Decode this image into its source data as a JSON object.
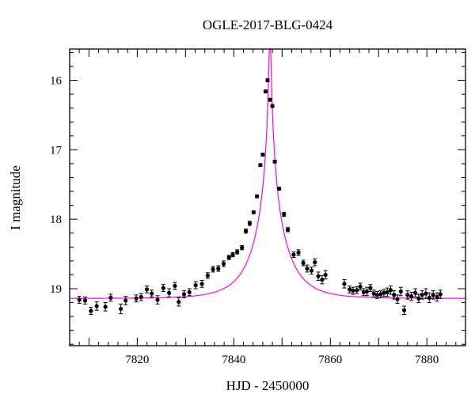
{
  "chart_data": {
    "type": "scatter",
    "title": "OGLE-2017-BLG-0424",
    "xlabel": "HJD - 2450000",
    "ylabel": "I magnitude",
    "xlim": [
      7806,
      7888
    ],
    "ylim": [
      19.82,
      15.55
    ],
    "x_ticks": [
      7820,
      7840,
      7860,
      7880
    ],
    "y_ticks": [
      16,
      17,
      18,
      19
    ],
    "y_inverted": true,
    "grid": false,
    "colors": {
      "points": "#000000",
      "model": "#ff00ff"
    },
    "model": {
      "t0": 7847.5,
      "u0": 0.03,
      "tE": 6.5,
      "baseline": 19.14
    },
    "series": [
      {
        "type": "scatter",
        "x": [
          7808.0,
          7809.2,
          7810.4,
          7811.6,
          7813.4,
          7814.5,
          7816.6,
          7817.6,
          7819.8,
          7820.8,
          7822.0,
          7823.0,
          7824.2,
          7825.4,
          7826.6,
          7827.8,
          7828.6,
          7829.7,
          7830.8,
          7832.1,
          7833.4,
          7834.6,
          7835.7,
          7836.8,
          7837.9,
          7839.0,
          7839.8,
          7840.7,
          7841.7,
          7842.5,
          7843.3,
          7844.1,
          7844.8,
          7845.5,
          7846.0,
          7846.6,
          7847.0,
          7847.5,
          7848.0,
          7848.5,
          7849.4,
          7850.4,
          7851.2,
          7852.4,
          7853.4,
          7854.4,
          7855.2,
          7856.1,
          7856.8,
          7857.5,
          7858.3,
          7859.0,
          7862.9,
          7864.0,
          7864.7,
          7865.5,
          7866.2,
          7866.9,
          7867.6,
          7868.3,
          7869.0,
          7869.7,
          7870.4,
          7871.1,
          7871.8,
          7872.5,
          7873.2,
          7873.9,
          7874.6,
          7875.3,
          7876.0,
          7876.8,
          7877.6,
          7878.3,
          7879.0,
          7879.8,
          7880.5,
          7881.3,
          7882.1,
          7882.8
        ],
        "y": [
          19.16,
          19.17,
          19.32,
          19.25,
          19.26,
          19.13,
          19.29,
          19.17,
          19.14,
          19.12,
          19.01,
          19.07,
          19.16,
          18.99,
          19.06,
          18.96,
          19.19,
          19.08,
          19.05,
          18.95,
          18.93,
          18.81,
          18.72,
          18.71,
          18.64,
          18.55,
          18.51,
          18.47,
          18.41,
          18.17,
          18.06,
          17.9,
          17.67,
          17.22,
          17.07,
          16.16,
          16.0,
          16.28,
          16.37,
          17.17,
          17.56,
          17.93,
          18.15,
          18.51,
          18.48,
          18.63,
          18.71,
          18.74,
          18.62,
          18.82,
          18.87,
          18.8,
          18.93,
          19.01,
          19.03,
          19.02,
          18.97,
          19.05,
          19.04,
          18.99,
          19.07,
          19.09,
          19.08,
          19.06,
          19.05,
          19.02,
          19.09,
          19.15,
          19.04,
          19.31,
          19.09,
          19.11,
          19.06,
          19.14,
          19.09,
          19.07,
          19.13,
          19.09,
          19.12,
          19.08
        ],
        "yerr": [
          0.05,
          0.05,
          0.05,
          0.06,
          0.06,
          0.05,
          0.07,
          0.06,
          0.05,
          0.05,
          0.05,
          0.05,
          0.06,
          0.05,
          0.06,
          0.05,
          0.06,
          0.05,
          0.05,
          0.05,
          0.05,
          0.04,
          0.04,
          0.04,
          0.04,
          0.03,
          0.03,
          0.03,
          0.03,
          0.03,
          0.03,
          0.02,
          0.02,
          0.02,
          0.02,
          0.02,
          0.02,
          0.02,
          0.02,
          0.02,
          0.02,
          0.03,
          0.03,
          0.04,
          0.04,
          0.04,
          0.05,
          0.05,
          0.05,
          0.06,
          0.06,
          0.06,
          0.06,
          0.05,
          0.05,
          0.05,
          0.05,
          0.05,
          0.06,
          0.05,
          0.05,
          0.05,
          0.05,
          0.05,
          0.06,
          0.06,
          0.06,
          0.06,
          0.06,
          0.06,
          0.06,
          0.06,
          0.06,
          0.06,
          0.06,
          0.07,
          0.07,
          0.06,
          0.06,
          0.06
        ]
      }
    ]
  }
}
